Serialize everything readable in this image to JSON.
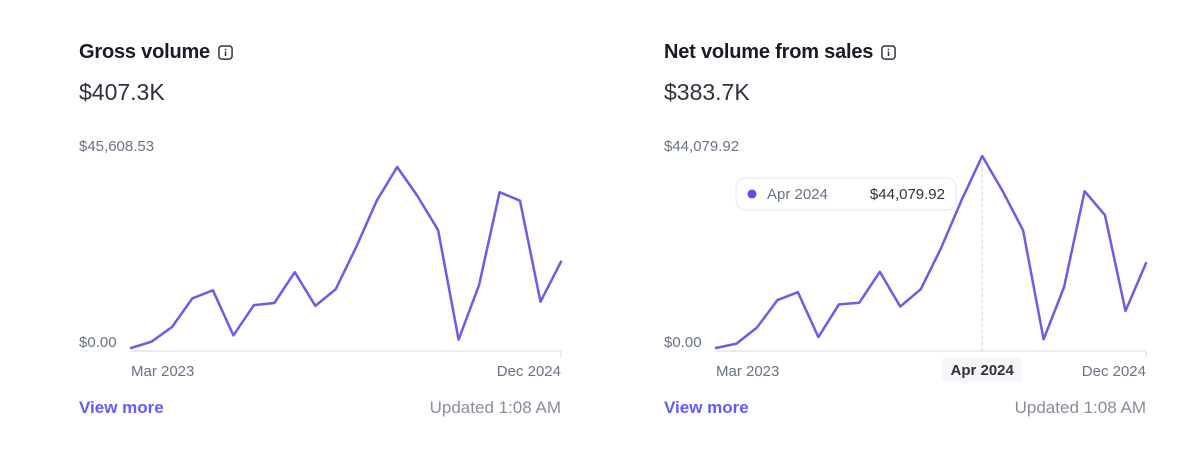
{
  "colors": {
    "accent": "#635bff",
    "line": "#6c5ce7",
    "axis": "#d5dbe1",
    "muted": "#8a8d99"
  },
  "cards": [
    {
      "title": "Gross volume",
      "info_icon": "info-icon",
      "total": "$407.3K",
      "view_more": "View more",
      "updated": "Updated 1:08 AM",
      "chart_data": {
        "type": "line",
        "title": "Gross volume",
        "ymax_label": "$45,608.53",
        "ymin_label": "$0.00",
        "ylim": [
          0,
          45608.53
        ],
        "x_start_label": "Mar 2023",
        "x_end_label": "Dec 2024",
        "values": [
          0,
          1500,
          5000,
          11800,
          13700,
          3000,
          10200,
          10700,
          18000,
          10000,
          14000,
          24000,
          35000,
          43000,
          36000,
          28000,
          2000,
          15000,
          37000,
          35000,
          11000,
          20500
        ],
        "grid": false,
        "legend": "none"
      }
    },
    {
      "title": "Net volume from sales",
      "info_icon": "info-icon",
      "total": "$383.7K",
      "view_more": "View more",
      "updated": "Updated 1:08 AM",
      "chart_data": {
        "type": "line",
        "title": "Net volume from sales",
        "ymax_label": "$44,079.92",
        "ymin_label": "$0.00",
        "ylim": [
          0,
          44079.92
        ],
        "x_start_label": "Mar 2023",
        "x_end_label": "Dec 2024",
        "values": [
          0,
          1000,
          4700,
          11000,
          12800,
          2500,
          10000,
          10400,
          17500,
          9500,
          13500,
          23000,
          34000,
          44079.92,
          36000,
          27000,
          2000,
          14000,
          36000,
          30500,
          8500,
          19500
        ],
        "grid": false,
        "legend": "none",
        "hover": {
          "index": 13,
          "x_label": "Apr 2024",
          "tooltip_label": "Apr 2024",
          "tooltip_value": "$44,079.92"
        }
      }
    }
  ]
}
